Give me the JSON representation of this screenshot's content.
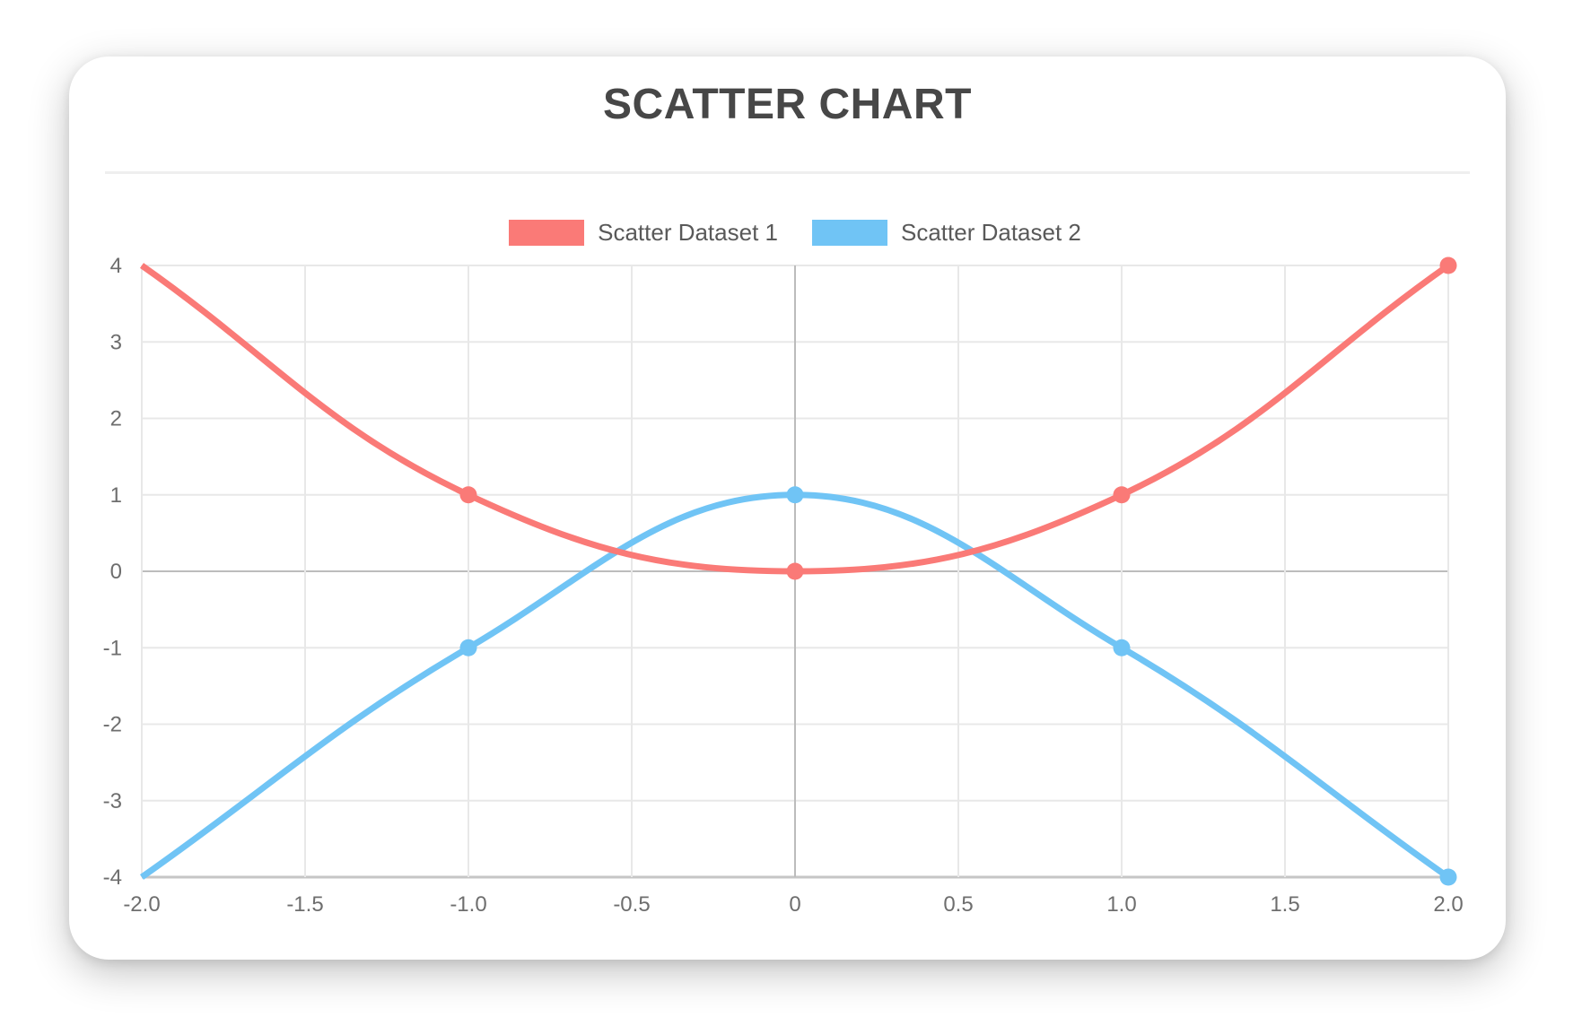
{
  "chart_data": {
    "type": "scatter",
    "title": "SCATTER CHART",
    "xlabel": "",
    "ylabel": "",
    "xlim": [
      -2,
      2
    ],
    "ylim": [
      -4,
      4
    ],
    "grid": true,
    "legend_position": "top",
    "x_ticks": [
      "-2.0",
      "-1.5",
      "-1.0",
      "-0.5",
      "0",
      "0.5",
      "1.0",
      "1.5",
      "2.0"
    ],
    "y_ticks": [
      "4",
      "3",
      "2",
      "1",
      "0",
      "-1",
      "-2",
      "-3",
      "-4"
    ],
    "grid_color": "#e8e8e8",
    "zero_line_color": "#bcbcbc",
    "axis_border_color": "#c6c6c6",
    "tick_color": "#6e6e6e",
    "series": [
      {
        "name": "Scatter Dataset 1",
        "color": "#FA7A77",
        "points": [
          {
            "x": -2,
            "y": 4
          },
          {
            "x": -1,
            "y": 1
          },
          {
            "x": 0,
            "y": 0
          },
          {
            "x": 1,
            "y": 1
          },
          {
            "x": 2,
            "y": 4
          }
        ]
      },
      {
        "name": "Scatter Dataset 2",
        "color": "#70C4F5",
        "points": [
          {
            "x": -2,
            "y": -4
          },
          {
            "x": -1,
            "y": -1
          },
          {
            "x": 0,
            "y": 1
          },
          {
            "x": 1,
            "y": -1
          },
          {
            "x": 2,
            "y": -4
          }
        ]
      }
    ]
  }
}
